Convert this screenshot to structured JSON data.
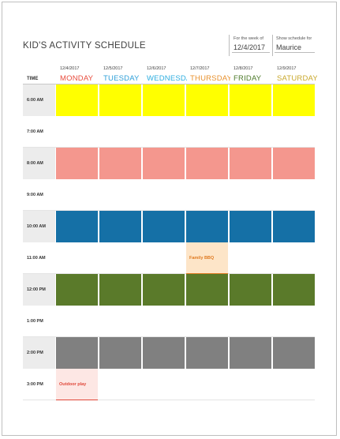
{
  "title": "KID'S ACTIVITY SCHEDULE",
  "week": {
    "label": "For the week of",
    "value": "12/4/2017"
  },
  "schedule_for": {
    "label": "Show schedule for",
    "value": "Maurice"
  },
  "time_header": "TIME",
  "days": [
    {
      "date": "12/4/2017",
      "name": "MONDAY",
      "color": "#e84c3d"
    },
    {
      "date": "12/5/2017",
      "name": "TUESDAY",
      "color": "#2e9fd8"
    },
    {
      "date": "12/6/2017",
      "name": "WEDNESDAY",
      "color": "#2eaee0"
    },
    {
      "date": "12/7/2017",
      "name": "THURSDAY",
      "color": "#e8912d"
    },
    {
      "date": "12/8/2017",
      "name": "FRIDAY",
      "color": "#4d7a2a"
    },
    {
      "date": "12/9/2017",
      "name": "SATURDAY",
      "color": "#c9a82c"
    }
  ],
  "rows": [
    {
      "time": "6:00 AM",
      "fill": "#ffff00"
    },
    {
      "time": "7:00 AM",
      "fill": ""
    },
    {
      "time": "8:00 AM",
      "fill": "#f4978e"
    },
    {
      "time": "9:00 AM",
      "fill": ""
    },
    {
      "time": "10:00 AM",
      "fill": "#1570a6"
    },
    {
      "time": "11:00 AM",
      "fill": ""
    },
    {
      "time": "12:00 PM",
      "fill": "#5a7a2a"
    },
    {
      "time": "1:00 PM",
      "fill": ""
    },
    {
      "time": "2:00 PM",
      "fill": "#808080"
    },
    {
      "time": "3:00 PM",
      "fill": ""
    }
  ],
  "events": [
    {
      "text": "Family BBQ",
      "row": 5,
      "day": 3,
      "bg": "#fde5c8",
      "color": "#e07b22"
    },
    {
      "text": "Outdoor play",
      "row": 9,
      "day": 0,
      "bg": "#fde7e4",
      "color": "#e0483a"
    }
  ]
}
